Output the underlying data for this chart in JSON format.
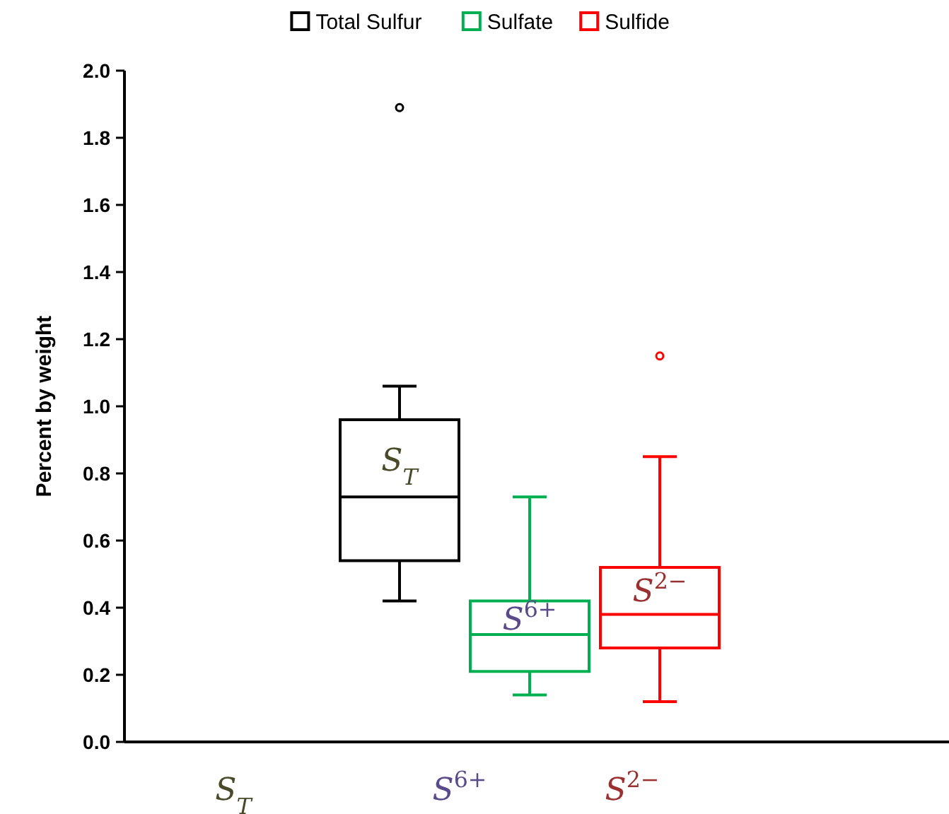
{
  "chart_data": {
    "type": "box",
    "ylabel": "Percent by weight",
    "categories": [
      null
    ],
    "ylim": [
      0,
      2
    ],
    "yticks": [
      {
        "value": 0,
        "label": "0.0"
      },
      0.2,
      0.4,
      0.6,
      0.8,
      {
        "value": 1,
        "label": "1.0"
      },
      1.2,
      1.4,
      1.6,
      1.8,
      {
        "value": 2,
        "label": "2.0"
      }
    ],
    "grid": false,
    "legend": "top",
    "marker": "circle",
    "series": [
      {
        "name": "Total Sulfur",
        "color": "#000000",
        "boxes": [
          {
            "low": 0.42,
            "q1": 0.54,
            "median": 0.73,
            "q3": 0.96,
            "high": 1.06,
            "outliers": [
              1.89
            ]
          }
        ]
      },
      {
        "name": "Sulfate",
        "color": "#00b050",
        "boxes": [
          {
            "low": 0.14,
            "q1": 0.21,
            "median": 0.32,
            "q3": 0.42,
            "high": 0.73
          }
        ]
      },
      {
        "name": "Sulfide",
        "color": "#ff0000",
        "boxes": [
          {
            "low": 0.12,
            "q1": 0.28,
            "median": 0.38,
            "q3": 0.52,
            "high": 0.85,
            "outliers": [
              1.15
            ]
          }
        ]
      }
    ],
    "annotations": [
      "S$_{T}$",
      "S$^{6+}$",
      "S$^{2−}$",
      "S$_{T}$",
      "S$^{6+}$",
      "S$^{2−}$"
    ]
  }
}
